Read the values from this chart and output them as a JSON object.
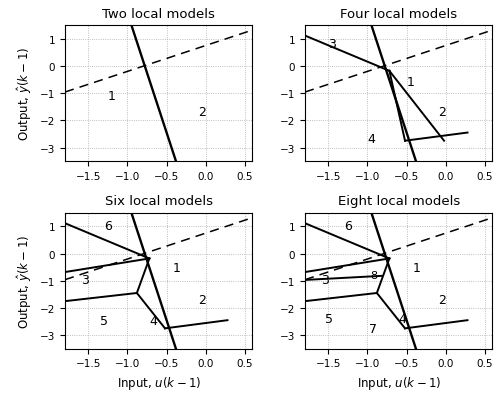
{
  "titles": [
    "Two local models",
    "Four local models",
    "Six local models",
    "Eight local models"
  ],
  "xlim": [
    -1.8,
    0.6
  ],
  "ylim": [
    -3.5,
    1.5
  ],
  "xlabel": "Input, $u(k-1)$",
  "ylabel": "Output, $\\hat{y}(k-1)$",
  "xticks": [
    -1.5,
    -1.0,
    -0.5,
    0.0,
    0.5
  ],
  "yticks": [
    -3,
    -2,
    -1,
    0,
    1
  ],
  "background": "#ffffff",
  "boundary_lw": 1.4,
  "eq_slope": 0.95,
  "eq_intercept": 0.75,
  "label_fontsize": 9
}
